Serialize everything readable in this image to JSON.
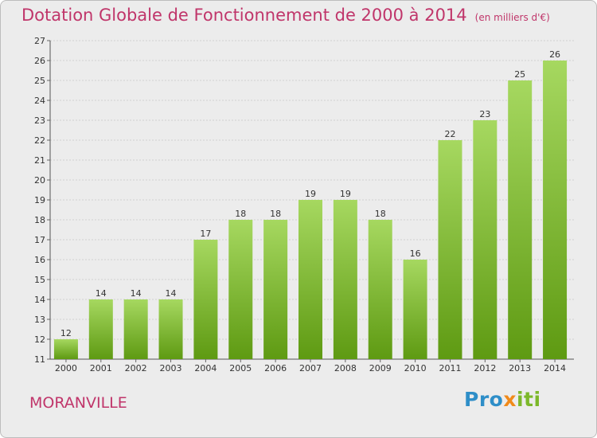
{
  "title": "Dotation Globale de Fonctionnement de 2000 à 2014",
  "subtitle": "(en milliers d'€)",
  "town": "MORANVILLE",
  "logo": {
    "part1": "Pro",
    "part2": "x",
    "part3": "iti"
  },
  "colors": {
    "title": "#c0356a",
    "bar_light": "#a6d860",
    "bar_dark": "#5e9a12",
    "background": "#ececec",
    "grid": "#d0d0d0"
  },
  "chart_data": {
    "type": "bar",
    "categories": [
      "2000",
      "2001",
      "2002",
      "2003",
      "2004",
      "2005",
      "2006",
      "2007",
      "2008",
      "2009",
      "2010",
      "2011",
      "2012",
      "2013",
      "2014"
    ],
    "values": [
      12,
      14,
      14,
      14,
      17,
      18,
      18,
      19,
      19,
      18,
      16,
      22,
      23,
      25,
      26
    ],
    "ylim": [
      11,
      27
    ],
    "yticks": [
      11,
      12,
      13,
      14,
      15,
      16,
      17,
      18,
      19,
      20,
      21,
      22,
      23,
      24,
      25,
      26,
      27
    ],
    "grid": "horizontal",
    "data_labels": true
  }
}
